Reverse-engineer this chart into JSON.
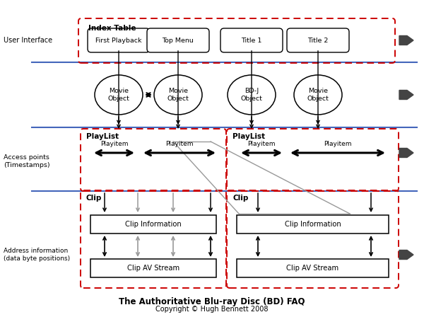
{
  "title": "The Authoritative Blu-ray Disc (BD) FAQ",
  "subtitle": "Copyright © Hugh Bennett 2008",
  "bg_color": "#ffffff",
  "red_dash": "#cc0000",
  "blue_line": "#4466bb",
  "black": "#000000",
  "gray": "#999999",
  "dark_gray": "#444444",
  "index_table_label": "Index Table",
  "user_interface_label": "User Interface",
  "playlist_label": "PlayList",
  "clip_label": "Clip",
  "access_points_label": "Access points\n(Timestamps)",
  "address_info_label": "Address information\n(data byte positions)",
  "index_items": [
    "First Playback",
    "Top Menu",
    "Title 1",
    "Title 2"
  ],
  "movie_objects": [
    "Movie\nObject",
    "Movie\nObject",
    "BD-J\nObject",
    "Movie\nObject"
  ],
  "playitem": "Playitem",
  "clip_info_label": "Clip Information",
  "clip_av_label": "Clip AV Stream",
  "fig_w": 6.0,
  "fig_h": 4.48,
  "dpi": 100
}
